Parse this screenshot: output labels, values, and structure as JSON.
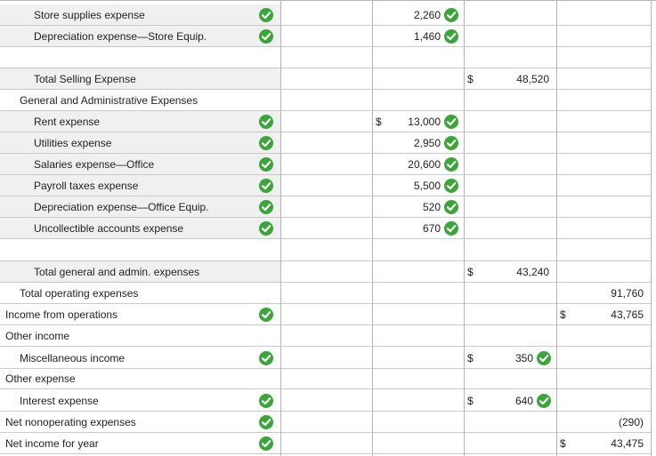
{
  "rows": [
    {
      "label": "Store supplies expense",
      "indent": 2,
      "check": true,
      "shade": true,
      "c2": {
        "value": "2,260",
        "check": true
      }
    },
    {
      "label": "Depreciation expense—Store Equip.",
      "indent": 2,
      "check": true,
      "shade": true,
      "c2": {
        "value": "1,460",
        "check": true
      }
    },
    {
      "label": "",
      "blank": true
    },
    {
      "label": "Total Selling Expense",
      "indent": 2,
      "shade": true,
      "c3": {
        "value": "48,520",
        "cur": "$"
      }
    },
    {
      "label": "General and Administrative Expenses",
      "indent": 1
    },
    {
      "label": "Rent expense",
      "indent": 2,
      "check": true,
      "shade": true,
      "c2": {
        "value": "13,000",
        "cur": "$",
        "check": true
      }
    },
    {
      "label": "Utilities expense",
      "indent": 2,
      "check": true,
      "shade": true,
      "c2": {
        "value": "2,950",
        "check": true
      }
    },
    {
      "label": "Salaries expense—Office",
      "indent": 2,
      "check": true,
      "shade": true,
      "c2": {
        "value": "20,600",
        "check": true
      }
    },
    {
      "label": "Payroll taxes expense",
      "indent": 2,
      "check": true,
      "shade": true,
      "c2": {
        "value": "5,500",
        "check": true
      }
    },
    {
      "label": "Depreciation expense—Office Equip.",
      "indent": 2,
      "check": true,
      "shade": true,
      "c2": {
        "value": "520",
        "check": true
      }
    },
    {
      "label": "Uncollectible accounts expense",
      "indent": 2,
      "check": true,
      "shade": true,
      "c2": {
        "value": "670",
        "check": true
      }
    },
    {
      "label": "",
      "blank": true
    },
    {
      "label": "Total general and admin. expenses",
      "indent": 2,
      "shade": true,
      "c3": {
        "value": "43,240",
        "cur": "$"
      }
    },
    {
      "label": "Total operating expenses",
      "indent": 1,
      "c4": {
        "value": "91,760"
      }
    },
    {
      "label": "Income from operations",
      "indent": 0,
      "check": true,
      "c4": {
        "value": "43,765",
        "cur": "$"
      }
    },
    {
      "label": "Other income",
      "indent": 0
    },
    {
      "label": "Miscellaneous income",
      "indent": 1,
      "check": true,
      "c3": {
        "value": "350",
        "cur": "$",
        "check": true
      }
    },
    {
      "label": "Other expense",
      "indent": 0
    },
    {
      "label": "Interest expense",
      "indent": 1,
      "check": true,
      "c3": {
        "value": "640",
        "cur": "$",
        "check": true
      }
    },
    {
      "label": "Net nonoperating expenses",
      "indent": 0,
      "check": true,
      "c4": {
        "value": "(290)"
      }
    },
    {
      "label": "Net income for year",
      "indent": 0,
      "check": true,
      "c4": {
        "value": "43,475",
        "cur": "$"
      }
    }
  ],
  "colors": {
    "check": "#3aa63a",
    "shade": "#f0f0f0"
  },
  "icons": {
    "check": "check-circle-icon"
  }
}
